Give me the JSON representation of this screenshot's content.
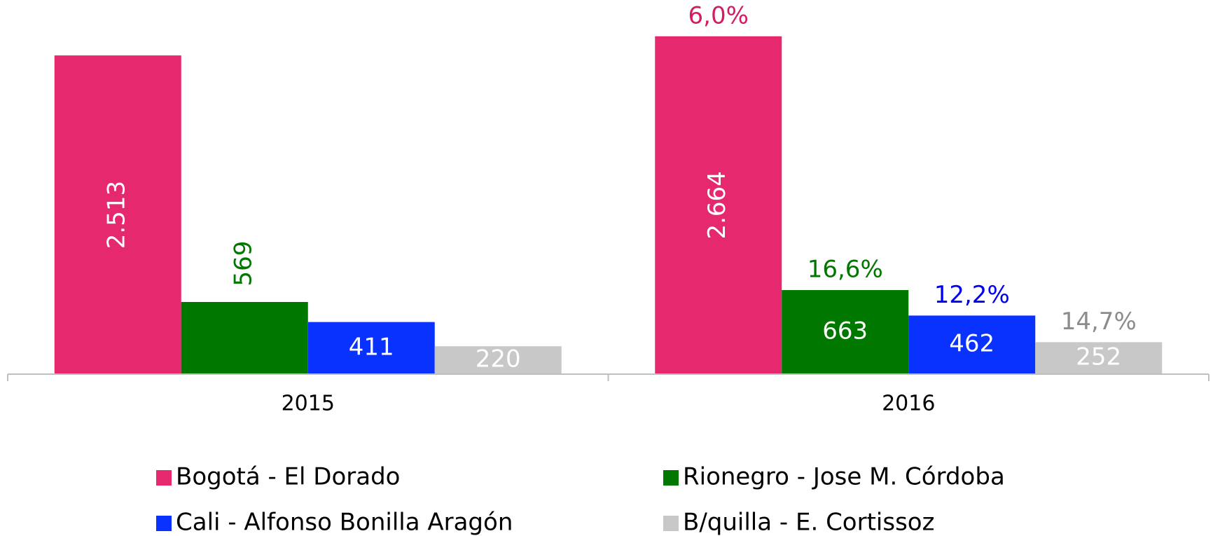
{
  "chart_data": {
    "type": "bar",
    "categories": [
      "2015",
      "2016"
    ],
    "ylim": [
      0,
      2950
    ],
    "series": [
      {
        "name": "Bogotá - El Dorado",
        "color": "#e6296f",
        "values": [
          2513,
          2664
        ],
        "value_labels": [
          "2.513",
          "2.664"
        ],
        "change_label": "6,0%",
        "change_color": "#d41c66"
      },
      {
        "name": "Rionegro - Jose M. Córdoba",
        "color": "#007800",
        "values": [
          569,
          663
        ],
        "change_label": "16,6%",
        "change_color": "#007800"
      },
      {
        "name": "Cali - Alfonso Bonilla Aragón",
        "color": "#0a32ff",
        "values": [
          411,
          462
        ],
        "change_label": "12,2%",
        "change_color": "#0000f0"
      },
      {
        "name": "B/quilla - E. Cortissoz",
        "color": "#c8c8c8",
        "values": [
          220,
          252
        ],
        "change_label": "14,7%",
        "change_color": "#8c8c8c"
      }
    ]
  }
}
